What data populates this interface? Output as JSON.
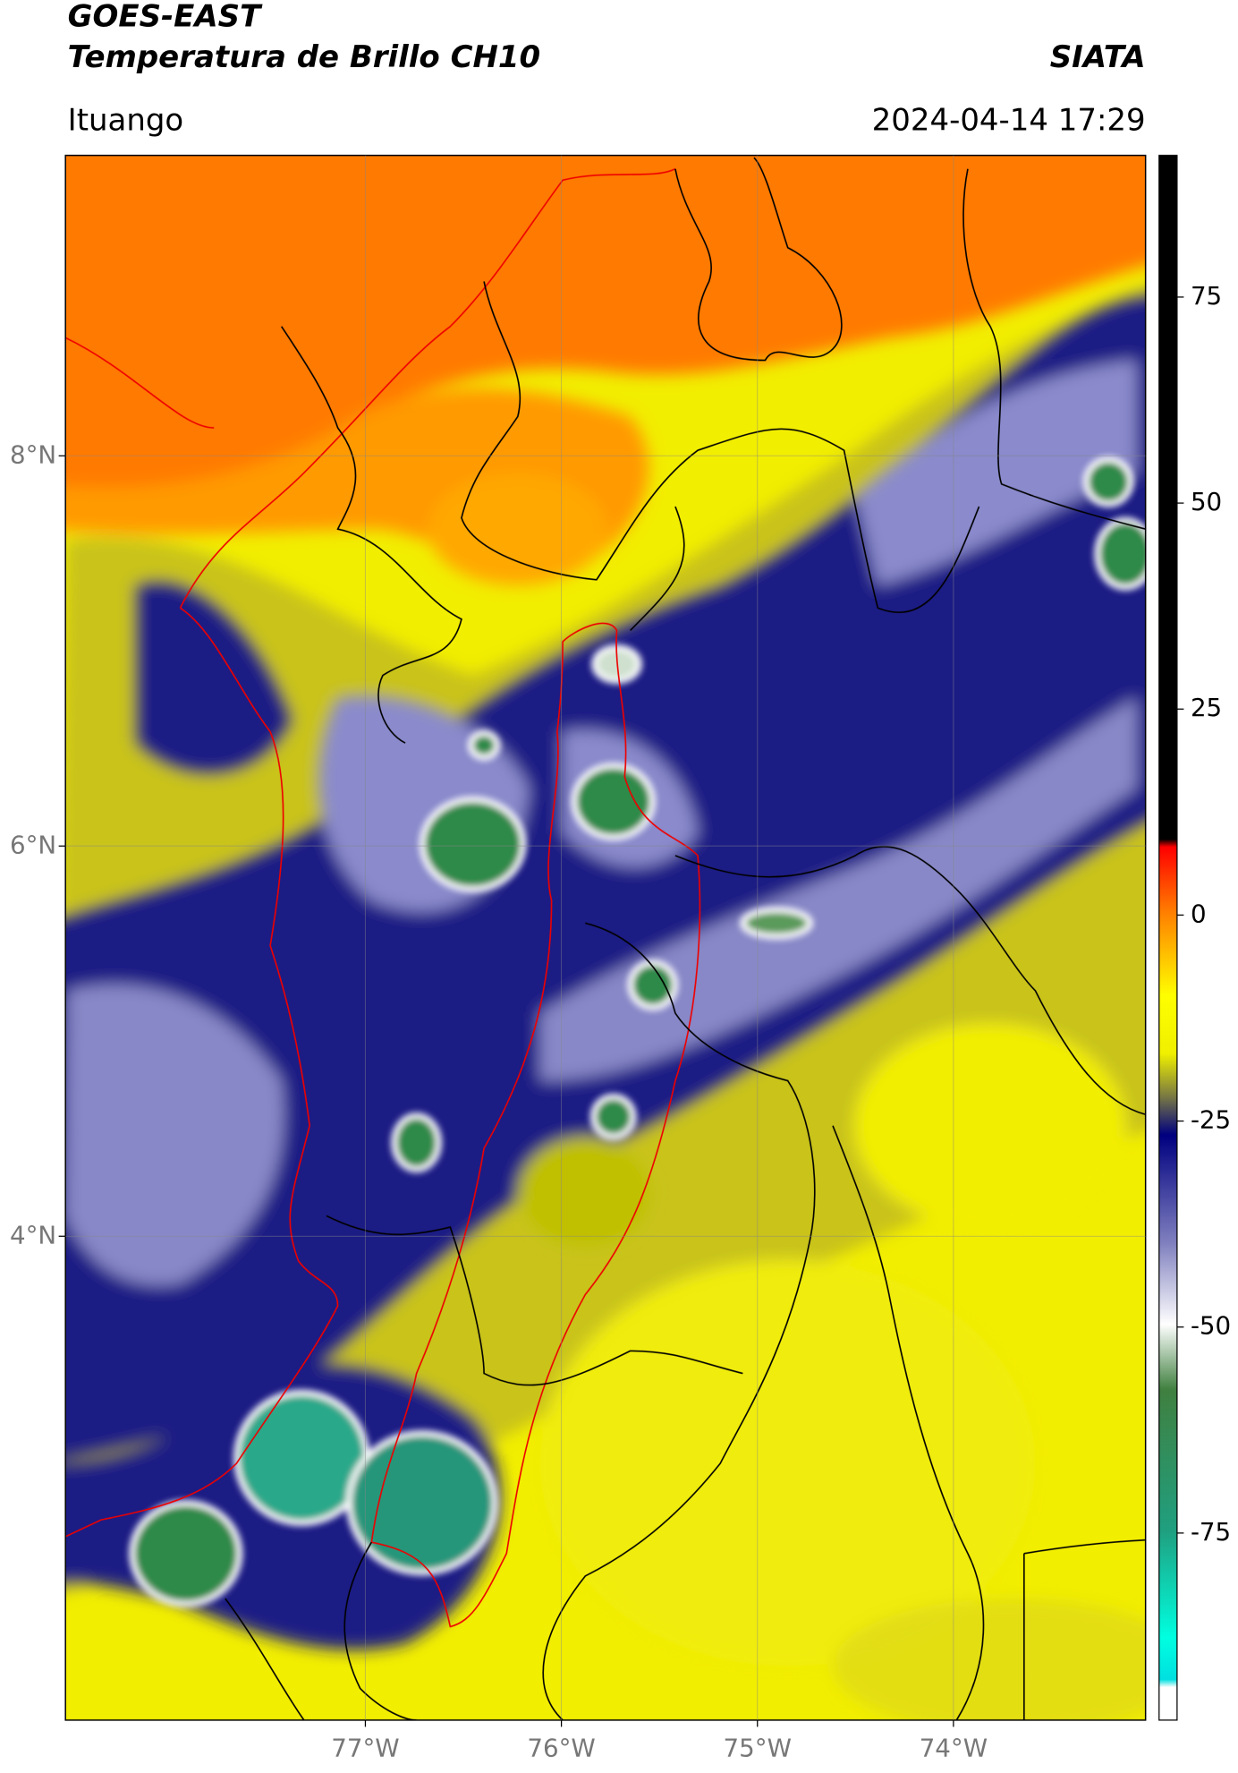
{
  "header": {
    "satellite": "GOES-EAST",
    "product": "Temperatura de Brillo CH10",
    "source": "SIATA",
    "location": "Ituango",
    "datetime": "2024-04-14 17:29"
  },
  "map": {
    "lon_lim": [
      -78.53,
      -73.02
    ],
    "lat_lim": [
      1.52,
      9.54
    ],
    "lon_ticks": [
      {
        "value": -77,
        "label": "77°W"
      },
      {
        "value": -76,
        "label": "76°W"
      },
      {
        "value": -75,
        "label": "75°W"
      },
      {
        "value": -74,
        "label": "74°W"
      }
    ],
    "lat_ticks": [
      {
        "value": 8,
        "label": "8°N"
      },
      {
        "value": 6,
        "label": "6°N"
      },
      {
        "value": 4,
        "label": "4°N"
      }
    ]
  },
  "colorbar": {
    "lim": [
      -97.7,
      92.2
    ],
    "ticks": [
      -75,
      -50,
      -25,
      0,
      25,
      50,
      75
    ]
  }
}
